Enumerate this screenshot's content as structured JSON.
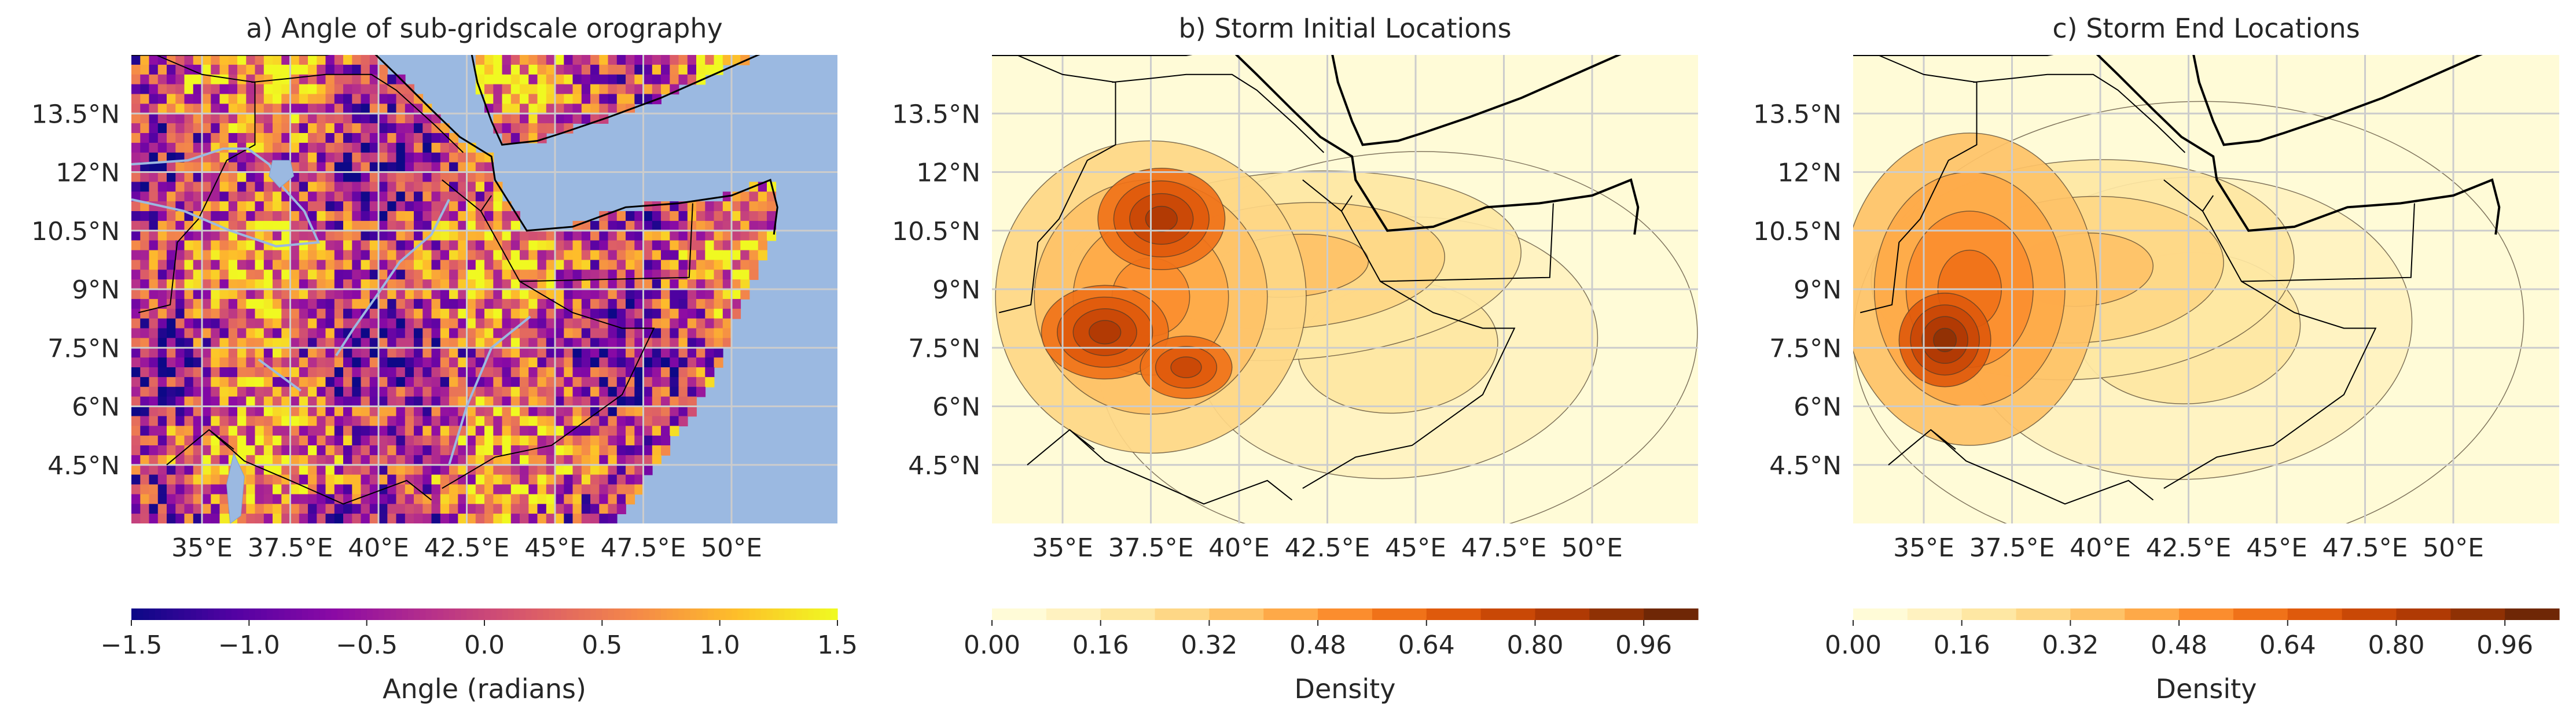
{
  "figure": {
    "panels": [
      {
        "id": "a",
        "title": "a) Angle of sub-gridscale orography",
        "colorbar": {
          "label": "Angle (radians)",
          "ticks": [
            "−1.5",
            "−1.0",
            "−0.5",
            "0.0",
            "0.5",
            "1.0",
            "1.5"
          ],
          "range": [
            -1.5,
            1.5
          ],
          "colormap": "plasma",
          "colors": [
            "#0d0887",
            "#5302a3",
            "#8b0aa5",
            "#b83289",
            "#db5c68",
            "#f48849",
            "#febd2a",
            "#f0f921"
          ]
        }
      },
      {
        "id": "b",
        "title": "b) Storm Initial Locations",
        "colorbar": {
          "label": "Density",
          "ticks": [
            "0.00",
            "0.16",
            "0.32",
            "0.48",
            "0.64",
            "0.80",
            "0.96"
          ],
          "range": [
            0.0,
            1.04
          ],
          "colormap": "YlOrBr",
          "colors": [
            "#fffbd7",
            "#fff2c0",
            "#fee7a3",
            "#fed786",
            "#fec267",
            "#fea948",
            "#fb8d2e",
            "#f07219",
            "#df5a0c",
            "#c94806",
            "#b03a04",
            "#8f3104",
            "#6f2706"
          ]
        }
      },
      {
        "id": "c",
        "title": "c) Storm End Locations",
        "colorbar": {
          "label": "Density",
          "ticks": [
            "0.00",
            "0.16",
            "0.32",
            "0.48",
            "0.64",
            "0.80",
            "0.96"
          ],
          "range": [
            0.0,
            1.04
          ],
          "colormap": "YlOrBr",
          "colors": [
            "#fffbd7",
            "#fff2c0",
            "#fee7a3",
            "#fed786",
            "#fec267",
            "#fea948",
            "#fb8d2e",
            "#f07219",
            "#df5a0c",
            "#c94806",
            "#b03a04",
            "#8f3104",
            "#6f2706"
          ]
        }
      }
    ],
    "axes": {
      "lon_range": [
        33,
        53
      ],
      "lat_range": [
        3,
        15
      ],
      "lon_ticks": [
        "35°E",
        "37.5°E",
        "40°E",
        "42.5°E",
        "45°E",
        "47.5°E",
        "50°E"
      ],
      "lon_tick_values": [
        35,
        37.5,
        40,
        42.5,
        45,
        47.5,
        50
      ],
      "lat_ticks": [
        "13.5°N",
        "12°N",
        "10.5°N",
        "9°N",
        "7.5°N",
        "6°N",
        "4.5°N"
      ],
      "lat_tick_values": [
        13.5,
        12,
        10.5,
        9,
        7.5,
        6,
        4.5
      ],
      "grid": true,
      "grid_color": "#cccccc",
      "ocean_color": "#9bb9e1"
    }
  }
}
